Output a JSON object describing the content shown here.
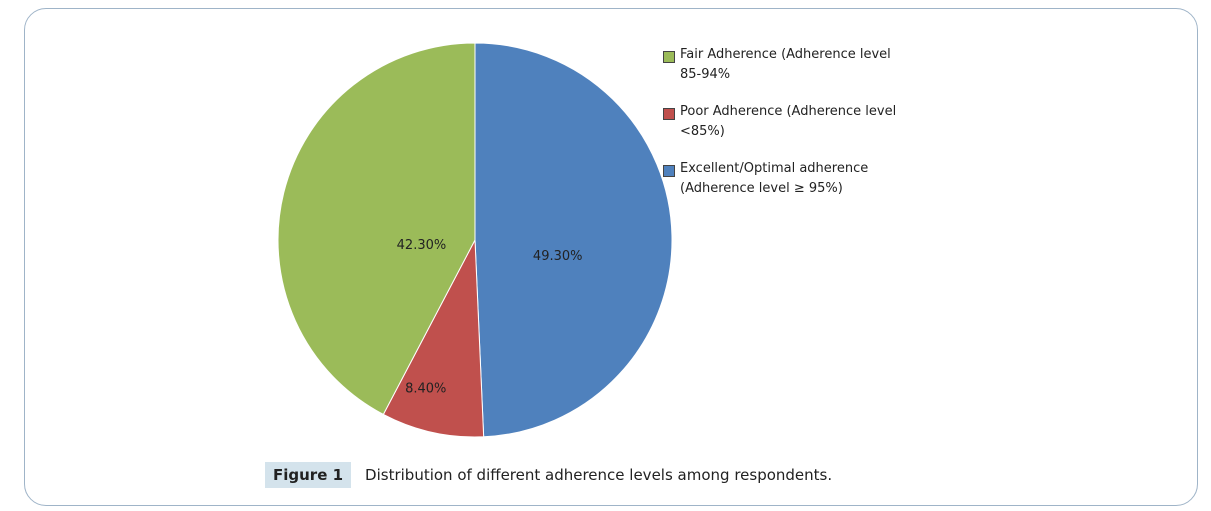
{
  "chart_data": {
    "type": "pie",
    "title": "",
    "slices": [
      {
        "name": "Excellent/Optimal adherence (Adherence level ≥ 95%)",
        "value": 49.3,
        "label": "49.30%",
        "color": "#4F81BD"
      },
      {
        "name": "Poor Adherence (Adherence level <85%)",
        "value": 8.4,
        "label": "8.40%",
        "color": "#C0504D"
      },
      {
        "name": "Fair Adherence (Adherence level 85-94%",
        "value": 42.3,
        "label": "42.30%",
        "color": "#9BBB59"
      }
    ],
    "legend": {
      "placement": "top-right",
      "entries": [
        {
          "text": "Fair Adherence (Adherence level 85-94%",
          "color": "#9BBB59"
        },
        {
          "text": "Poor Adherence (Adherence level <85%)",
          "color": "#C0504D"
        },
        {
          "text": "Excellent/Optimal adherence (Adherence level ≥ 95%)",
          "color": "#4F81BD"
        }
      ]
    }
  },
  "caption": {
    "label": "Figure 1",
    "text": "Distribution of different adherence levels among respondents."
  }
}
